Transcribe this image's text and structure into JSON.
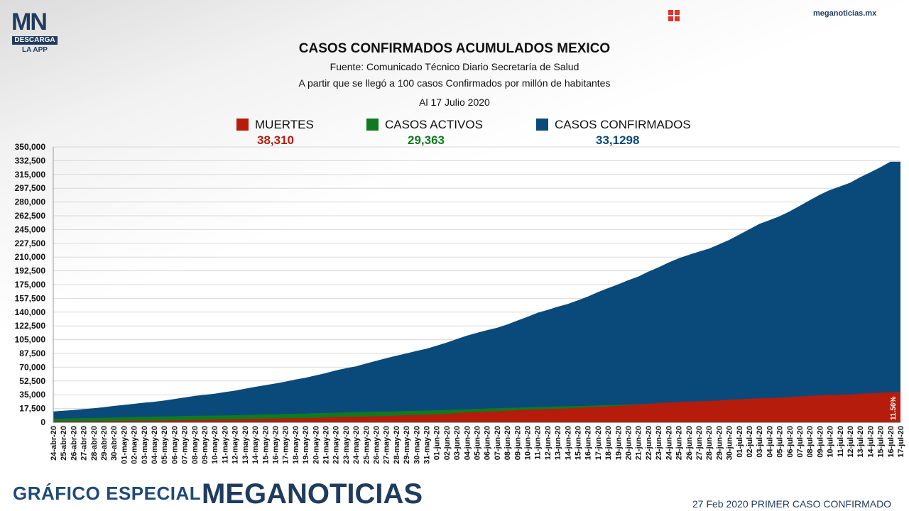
{
  "branding": {
    "logo_mn": "MN",
    "logo_descarga": "DESCARGA",
    "logo_la_app": "LA APP",
    "site": "meganoticias.mx",
    "grid_icon": "grid-icon",
    "footer_left": "GRÁFICO ESPECIAL",
    "footer_brand": "MEGANOTICIAS",
    "footer_right": "27 Feb 2020 PRIMER CASO CONFIRMADO"
  },
  "header": {
    "title": "CASOS CONFIRMADOS ACUMULADOS MEXICO",
    "source": "Fuente: Comunicado Técnico Diario Secretaría de Salud",
    "note": "A partir que se llegó a 100 casos Confirmados por millón de habitantes",
    "date": "Al 17 Julio 2020"
  },
  "legend": [
    {
      "label": "MUERTES",
      "value": "38,310",
      "color": "#b51c0c"
    },
    {
      "label": "CASOS ACTIVOS",
      "value": "29,363",
      "color": "#0f7a1f"
    },
    {
      "label": "CASOS CONFIRMADOS",
      "value": "33,1298",
      "color": "#0a4a7a"
    }
  ],
  "chart_data": {
    "type": "area",
    "ylim": [
      0,
      350000
    ],
    "ytick_labels": [
      "0",
      "17,500",
      "35,000",
      "52,500",
      "70,000",
      "87,500",
      "105,000",
      "122,500",
      "140,000",
      "157,500",
      "175,000",
      "192,500",
      "210,000",
      "227,500",
      "245,000",
      "262,500",
      "280,000",
      "297,500",
      "315,000",
      "332,500",
      "350,000"
    ],
    "grid": true,
    "end_label": "11.56%",
    "x": [
      "24-abr-20",
      "25-abr-20",
      "26-abr-20",
      "27-abr-20",
      "28-abr-20",
      "29-abr-20",
      "30-abr-20",
      "01-may-20",
      "02-may-20",
      "03-may-20",
      "04-may-20",
      "05-may-20",
      "06-may-20",
      "07-may-20",
      "08-may-20",
      "09-may-20",
      "10-may-20",
      "11-may-20",
      "12-may-20",
      "13-may-20",
      "14-may-20",
      "15-may-20",
      "16-may-20",
      "17-may-20",
      "18-may-20",
      "19-may-20",
      "20-may-20",
      "21-may-20",
      "22-may-20",
      "23-may-20",
      "24-may-20",
      "25-may-20",
      "26-may-20",
      "27-may-20",
      "28-may-20",
      "29-may-20",
      "30-may-20",
      "31-may-20",
      "01-jun-20",
      "02-jun-20",
      "03-jun-20",
      "04-jun-20",
      "05-jun-20",
      "06-jun-20",
      "07-jun-20",
      "08-jun-20",
      "09-jun-20",
      "10-jun-20",
      "11-jun-20",
      "12-jun-20",
      "13-jun-20",
      "14-jun-20",
      "15-jun-20",
      "16-jun-20",
      "17-jun-20",
      "18-jun-20",
      "19-jun-20",
      "20-jun-20",
      "21-jun-20",
      "22-jun-20",
      "23-jun-20",
      "24-jun-20",
      "25-jun-20",
      "26-jun-20",
      "27-jun-20",
      "28-jun-20",
      "29-jun-20",
      "30-jun-20",
      "01-jul-20",
      "02-jul-20",
      "03-jul-20",
      "04-jul-20",
      "05-jul-20",
      "06-jul-20",
      "07-jul-20",
      "08-jul-20",
      "09-jul-20",
      "10-jul-20",
      "11-jul-20",
      "12-jul-20",
      "13-jul-20",
      "14-jul-20",
      "15-jul-20",
      "16-jul-20",
      "17-jul-20"
    ],
    "series": [
      {
        "name": "CASOS CONFIRMADOS",
        "color": "#0a4a7a",
        "values": [
          13842,
          14677,
          15529,
          16752,
          17799,
          19224,
          20739,
          22088,
          23471,
          24905,
          26025,
          27634,
          29616,
          31522,
          33460,
          35022,
          36327,
          38324,
          40186,
          42595,
          45032,
          47144,
          49219,
          51633,
          54346,
          56594,
          59567,
          62527,
          65856,
          68620,
          71105,
          74560,
          78023,
          81400,
          84627,
          87512,
          90664,
          93435,
          97326,
          101238,
          105680,
          110026,
          113619,
          117103,
          120102,
          124301,
          129184,
          133974,
          139196,
          142690,
          146837,
          150264,
          154863,
          159793,
          165455,
          170485,
          175202,
          180545,
          185122,
          191410,
          196847,
          202951,
          208392,
          212802,
          216852,
          220657,
          226089,
          231770,
          238511,
          245251,
          252165,
          256848,
          261750,
          268008,
          275003,
          282283,
          289174,
          295268,
          299750,
          304435,
          311486,
          317635,
          324041,
          331298,
          331298
        ]
      },
      {
        "name": "CASOS ACTIVOS",
        "color": "#0f7a1f",
        "values": [
          4500,
          4800,
          5000,
          5300,
          5500,
          5800,
          6100,
          6400,
          6700,
          7000,
          7200,
          7400,
          7700,
          8000,
          8200,
          8400,
          8600,
          8700,
          9000,
          9300,
          9700,
          10000,
          10300,
          10600,
          10900,
          11200,
          11600,
          11900,
          12200,
          12600,
          13000,
          13200,
          13500,
          13800,
          14000,
          14300,
          14600,
          14900,
          15300,
          15700,
          16100,
          16600,
          17100,
          17600,
          17900,
          18200,
          18600,
          19000,
          19400,
          19800,
          20200,
          20400,
          20700,
          21000,
          21400,
          21800,
          22200,
          22600,
          23000,
          23500,
          23900,
          24300,
          24700,
          25100,
          25500,
          25800,
          26100,
          26400,
          26700,
          27000,
          27300,
          27500,
          27700,
          27900,
          28100,
          28300,
          28500,
          28700,
          28800,
          28900,
          29000,
          29100,
          29200,
          29300,
          29363
        ]
      },
      {
        "name": "MUERTES",
        "color": "#b51c0c",
        "values": [
          1069,
          1221,
          1305,
          1351,
          1434,
          1569,
          1732,
          1859,
          1972,
          2061,
          2154,
          2271,
          2507,
          2704,
          2961,
          3160,
          3353,
          3465,
          3573,
          3926,
          4220,
          4477,
          4767,
          5045,
          5177,
          5332,
          5666,
          6090,
          6510,
          6989,
          7179,
          7394,
          7633,
          8134,
          8597,
          9044,
          9415,
          9779,
          10167,
          10637,
          11729,
          12545,
          13170,
          13511,
          14053,
          14649,
          15357,
          15944,
          16448,
          16872,
          17141,
          17580,
          18310,
          19080,
          19747,
          20394,
          20781,
          21825,
          22584,
          23377,
          24324,
          25060,
          25779,
          26381,
          26648,
          27121,
          27769,
          28510,
          29189,
          29843,
          30366,
          30639,
          31119,
          32014,
          32796,
          33526,
          34191,
          34730,
          35006,
          35491,
          36327,
          36906,
          37574,
          38310,
          38310
        ]
      }
    ]
  }
}
